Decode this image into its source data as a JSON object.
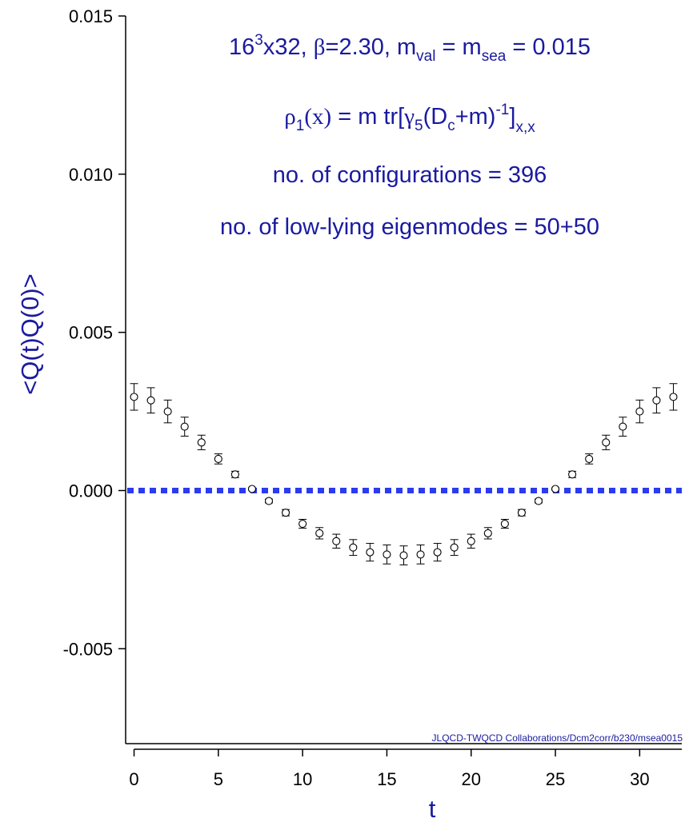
{
  "chart_data": {
    "type": "scatter",
    "xlabel": "t",
    "ylabel": "<Q(t)Q(0)>",
    "xlim": [
      -0.5,
      32.5
    ],
    "ylim": [
      -0.008,
      0.015
    ],
    "x_ticks": [
      0,
      5,
      10,
      15,
      20,
      25,
      30
    ],
    "x_tick_labels": [
      "0",
      "5",
      "10",
      "15",
      "20",
      "25",
      "30"
    ],
    "y_ticks": [
      -0.005,
      0.0,
      0.005,
      0.01,
      0.015
    ],
    "y_tick_labels": [
      "-0.005",
      "0.000",
      "0.005",
      "0.010",
      "0.015"
    ],
    "reference_line": {
      "y": 0.0,
      "style": "dotted",
      "color": "#2b3bf0"
    },
    "annotations": {
      "line1": {
        "a": "16",
        "b": "3",
        "c": "x32, ",
        "d": "β",
        "e": "=2.30, m",
        "f": "val",
        "g": " = m",
        "h": "sea",
        "i": " = 0.015"
      },
      "line2": {
        "a": "ρ",
        "b": "1",
        "c": "(x)",
        "d": " = m tr[",
        "e": "γ",
        "f": "5",
        "g": "(D",
        "h": "c",
        "i": "+m)",
        "j": "-1",
        "k": "]",
        "l": "x,x"
      },
      "line3": "no. of configurations = 396",
      "line4": "no. of low-lying eigenmodes = 50+50"
    },
    "credit": "JLQCD-TWQCD Collaborations/Dcm2corr/b230/msea0015",
    "series": [
      {
        "marker": "open-circle",
        "x": [
          0,
          1,
          2,
          3,
          4,
          5,
          6,
          7,
          8,
          9,
          10,
          11,
          12,
          13,
          14,
          15,
          16,
          17,
          18,
          19,
          20,
          21,
          22,
          23,
          24,
          25,
          26,
          27,
          28,
          29,
          30,
          31,
          32
        ],
        "y": [
          0.00296,
          0.00285,
          0.0025,
          0.00202,
          0.00152,
          0.001,
          0.00051,
          5e-05,
          -0.00033,
          -0.0007,
          -0.00105,
          -0.00135,
          -0.0016,
          -0.0018,
          -0.00195,
          -0.00202,
          -0.00205,
          -0.00202,
          -0.00195,
          -0.0018,
          -0.0016,
          -0.00135,
          -0.00105,
          -0.0007,
          -0.00033,
          5e-05,
          0.00051,
          0.001,
          0.00152,
          0.00202,
          0.0025,
          0.00285,
          0.00296
        ],
        "yerr": [
          0.00042,
          0.0004,
          0.00036,
          0.0003,
          0.00023,
          0.00016,
          0.0001,
          3e-05,
          6e-05,
          0.0001,
          0.00014,
          0.00018,
          0.00022,
          0.00025,
          0.00028,
          0.0003,
          0.0003,
          0.0003,
          0.00028,
          0.00025,
          0.00022,
          0.00018,
          0.00014,
          0.0001,
          6e-05,
          3e-05,
          0.0001,
          0.00016,
          0.00023,
          0.0003,
          0.00036,
          0.0004,
          0.00042
        ]
      }
    ]
  }
}
